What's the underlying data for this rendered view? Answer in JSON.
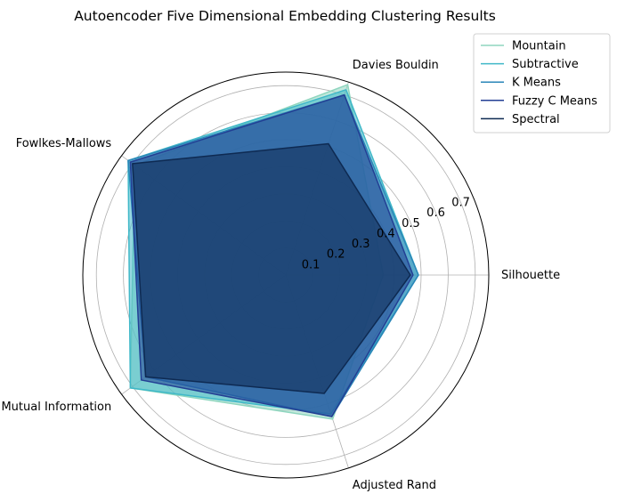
{
  "chart_data": {
    "type": "radar",
    "title": "Autoencoder Five Dimensional Embedding Clustering Results",
    "axes": [
      "Silhouette",
      "Davies Bouldin",
      "Fowlkes-Mallows",
      "Normalized Mutual Information",
      "Adjusted Rand"
    ],
    "rlim": [
      0,
      0.75
    ],
    "rticks": [
      0.1,
      0.2,
      0.3,
      0.4,
      0.5,
      0.6,
      0.7
    ],
    "grid": true,
    "legend_position": "top-right",
    "series": [
      {
        "name": "Mountain",
        "color": "#8fd6bf",
        "values": {
          "Silhouette": 0.36,
          "Davies Bouldin": 0.74,
          "Fowlkes-Mallows": 0.69,
          "Normalized Mutual Information": 0.71,
          "Adjusted Rand": 0.56
        }
      },
      {
        "name": "Subtractive",
        "color": "#3fb8c8",
        "values": {
          "Silhouette": 0.49,
          "Davies Bouldin": 0.72,
          "Fowlkes-Mallows": 0.72,
          "Normalized Mutual Information": 0.71,
          "Adjusted Rand": 0.54
        }
      },
      {
        "name": "K Means",
        "color": "#2a86b8",
        "values": {
          "Silhouette": 0.49,
          "Davies Bouldin": 0.7,
          "Fowlkes-Mallows": 0.72,
          "Normalized Mutual Information": 0.64,
          "Adjusted Rand": 0.55
        }
      },
      {
        "name": "Fuzzy C Means",
        "color": "#233f94",
        "values": {
          "Silhouette": 0.47,
          "Davies Bouldin": 0.7,
          "Fowlkes-Mallows": 0.71,
          "Normalized Mutual Information": 0.66,
          "Adjusted Rand": 0.55
        }
      },
      {
        "name": "Spectral",
        "color": "#0e2a52",
        "values": {
          "Silhouette": 0.46,
          "Davies Bouldin": 0.51,
          "Fowlkes-Mallows": 0.7,
          "Normalized Mutual Information": 0.64,
          "Adjusted Rand": 0.46
        }
      }
    ]
  }
}
